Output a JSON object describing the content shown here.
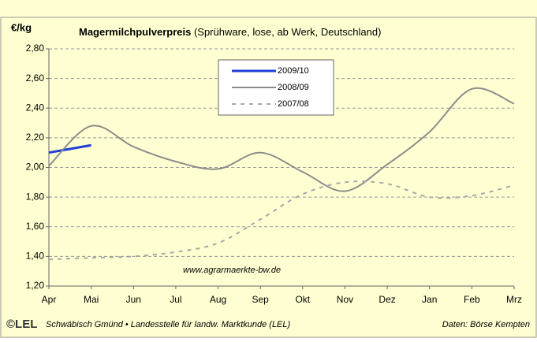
{
  "chart_data": {
    "type": "line",
    "y_label": "€/kg",
    "title": "Magermilchpulverpreis",
    "subtitle": "(Sprühware, lose, ab Werk, Deutschland)",
    "categories": [
      "Apr",
      "Mai",
      "Jun",
      "Jul",
      "Aug",
      "Sep",
      "Okt",
      "Nov",
      "Dez",
      "Jan",
      "Feb",
      "Mrz"
    ],
    "series": [
      {
        "name": "2009/10",
        "color": "#1f3fd8",
        "style": "solid",
        "width": 3,
        "values": [
          2.1,
          2.15,
          null,
          null,
          null,
          null,
          null,
          null,
          null,
          null,
          null,
          null
        ]
      },
      {
        "name": "2008/09",
        "color": "#8c8c8c",
        "style": "solid",
        "width": 2,
        "values": [
          2.01,
          2.28,
          2.14,
          2.04,
          1.99,
          2.1,
          1.97,
          1.84,
          2.02,
          2.24,
          2.53,
          2.43
        ]
      },
      {
        "name": "2007/08",
        "color": "#a8a8a8",
        "style": "dashed",
        "width": 2,
        "values": [
          1.38,
          1.39,
          1.4,
          1.43,
          1.49,
          1.65,
          1.82,
          1.9,
          1.89,
          1.8,
          1.81,
          1.88
        ]
      }
    ],
    "ylim": [
      1.2,
      2.8
    ],
    "yticks": [
      {
        "value": 1.2,
        "label": "1,20"
      },
      {
        "value": 1.4,
        "label": "1,40"
      },
      {
        "value": 1.6,
        "label": "1,60"
      },
      {
        "value": 1.8,
        "label": "1,80"
      },
      {
        "value": 2.0,
        "label": "2,00"
      },
      {
        "value": 2.2,
        "label": "2,20"
      },
      {
        "value": 2.4,
        "label": "2,40"
      },
      {
        "value": 2.6,
        "label": "2,60"
      },
      {
        "value": 2.8,
        "label": "2,80"
      }
    ],
    "grid": true,
    "annotation": "www.agrarmaerkte-bw.de",
    "logo": "©LEL",
    "footer_left": "Schwäbisch Gmünd • Landesstelle für landw. Marktkunde (LEL)",
    "footer_right": "Daten: Börse Kempten"
  }
}
